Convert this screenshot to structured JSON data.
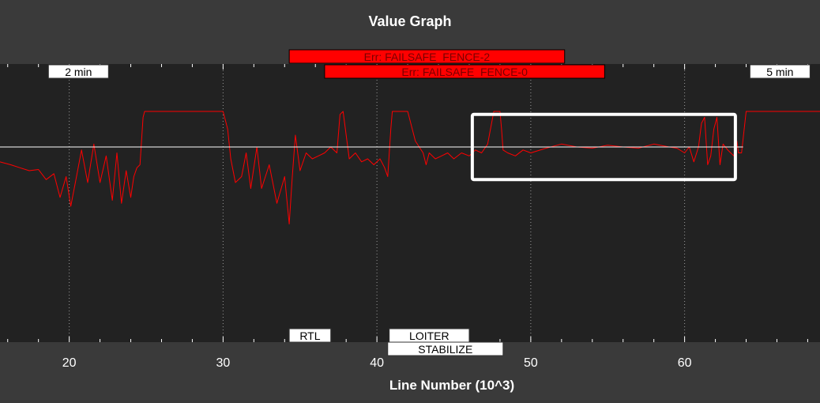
{
  "window": {
    "background": "#3a3a3a",
    "plot_background": "#222222"
  },
  "chart_data": {
    "type": "line",
    "title": "Value Graph",
    "xlabel": "Line Number (10^3)",
    "ylabel": "",
    "xlim": [
      15.5,
      68.8
    ],
    "ylim": [
      -1.0,
      1.0
    ],
    "x_ticks": [
      20,
      30,
      40,
      50,
      60
    ],
    "x_tick_labels": [
      "20",
      "30",
      "40",
      "50",
      "60"
    ],
    "grid": true,
    "series": [
      {
        "color": "#ff0000",
        "x": [
          15.5,
          16.2,
          16.8,
          17.4,
          18.0,
          18.5,
          19.0,
          19.4,
          19.8,
          20.1,
          20.4,
          20.8,
          21.2,
          21.6,
          22.0,
          22.4,
          22.8,
          23.1,
          23.4,
          23.7,
          24.0,
          24.2,
          24.4,
          24.6,
          24.8,
          24.9,
          25.0,
          25.5,
          27.0,
          28.5,
          30.0,
          30.2,
          30.3,
          30.5,
          30.8,
          31.2,
          31.5,
          31.8,
          32.2,
          32.5,
          33.0,
          33.5,
          34.0,
          34.3,
          34.5,
          34.7,
          35.0,
          35.4,
          35.8,
          36.2,
          36.6,
          37.0,
          37.4,
          37.6,
          37.8,
          38.0,
          38.2,
          38.6,
          39.0,
          39.4,
          39.8,
          40.2,
          40.5,
          40.7,
          40.9,
          41.0,
          41.2,
          41.5,
          42.0,
          42.5,
          43.0,
          43.2,
          43.4,
          43.8,
          44.2,
          44.6,
          45.0,
          45.5,
          46.0,
          46.4,
          46.8,
          47.2,
          47.6,
          48.0,
          48.1,
          48.2,
          48.5,
          49.0,
          49.5,
          50.0,
          51.0,
          52.0,
          53.0,
          54.0,
          55.0,
          56.0,
          57.0,
          58.0,
          59.0,
          59.5,
          60.0,
          60.3,
          60.6,
          60.9,
          61.1,
          61.3,
          61.5,
          61.7,
          61.9,
          62.1,
          62.3,
          62.5,
          62.8,
          63.0,
          63.2,
          63.4,
          63.5,
          63.7,
          64.0,
          66.0,
          68.8
        ],
        "y": [
          -0.25,
          -0.3,
          -0.35,
          -0.4,
          -0.38,
          -0.55,
          -0.45,
          -0.85,
          -0.5,
          -1.0,
          -0.6,
          -0.05,
          -0.6,
          0.05,
          -0.6,
          -0.15,
          -0.9,
          -0.1,
          -0.95,
          -0.4,
          -0.85,
          -0.5,
          -0.35,
          -0.3,
          0.5,
          0.6,
          0.6,
          0.6,
          0.6,
          0.6,
          0.6,
          0.4,
          0.3,
          -0.2,
          -0.6,
          -0.5,
          -0.1,
          -0.7,
          0.0,
          -0.7,
          -0.3,
          -0.95,
          -0.5,
          -1.3,
          -0.5,
          0.2,
          -0.4,
          -0.1,
          -0.2,
          -0.15,
          -0.1,
          0.0,
          -0.1,
          0.55,
          0.6,
          0.2,
          -0.2,
          -0.1,
          -0.25,
          -0.2,
          -0.3,
          -0.2,
          -0.35,
          -0.5,
          0.3,
          0.6,
          0.6,
          0.6,
          0.6,
          0.1,
          -0.1,
          -0.3,
          -0.1,
          -0.2,
          -0.15,
          -0.1,
          -0.2,
          -0.1,
          -0.15,
          -0.05,
          -0.1,
          0.05,
          0.6,
          0.6,
          0.3,
          -0.05,
          -0.1,
          -0.15,
          -0.05,
          -0.1,
          -0.02,
          0.05,
          0.0,
          -0.02,
          0.03,
          0.0,
          -0.02,
          0.05,
          0.0,
          -0.02,
          -0.1,
          0.0,
          -0.25,
          0.0,
          0.4,
          0.5,
          -0.3,
          -0.15,
          0.3,
          0.5,
          -0.3,
          0.05,
          -0.05,
          -0.1,
          -0.15,
          0.1,
          -0.1,
          -0.1,
          0.6,
          0.6,
          0.6
        ]
      },
      {
        "color": "#ffffff",
        "x": [
          15.5,
          63.8
        ],
        "y": [
          0.0,
          0.0
        ]
      }
    ],
    "annotations": {
      "time_markers": [
        {
          "label": "2 min",
          "x": 20.6
        },
        {
          "label": "5 min",
          "x": 66.2
        }
      ],
      "errors": [
        {
          "label": "Err: FAILSAFE_FENCE-2",
          "x_start": 34.3,
          "x_end": 52.2,
          "row": 0
        },
        {
          "label": "Err: FAILSAFE_FENCE-0",
          "x_start": 36.6,
          "x_end": 54.8,
          "row": 1
        }
      ],
      "modes": [
        {
          "label": "RTL",
          "x_start": 34.3,
          "x_end": 37.0,
          "row": 0
        },
        {
          "label": "LOITER",
          "x_start": 40.8,
          "x_end": 46.0,
          "row": 0
        },
        {
          "label": "STABILIZE",
          "x_start": 40.7,
          "x_end": 48.2,
          "row": 1
        }
      ],
      "highlight_box": {
        "x_start": 46.2,
        "x_end": 63.3,
        "y_top": 0.55,
        "y_bottom": -0.55,
        "color": "#ffffff"
      }
    }
  }
}
